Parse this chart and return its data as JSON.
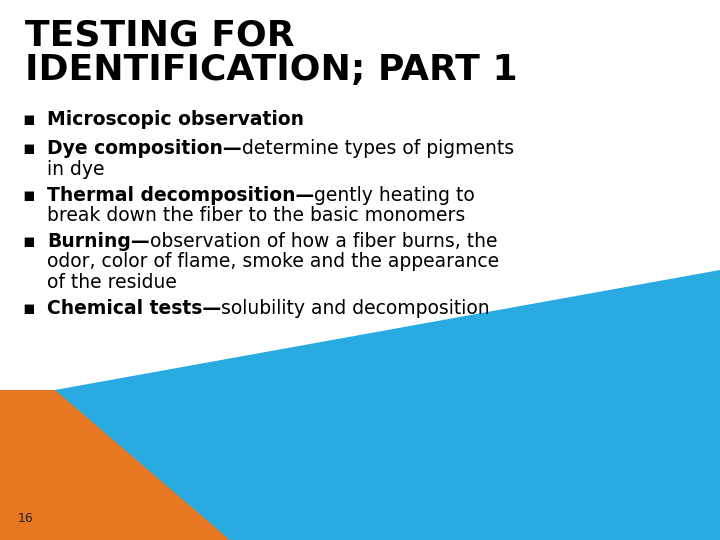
{
  "title_line1": "TESTING FOR",
  "title_line2": "IDENTIFICATION; PART 1",
  "bullets": [
    {
      "bold_part": "Microscopic observation",
      "normal_part": "",
      "has_dash": false
    },
    {
      "bold_part": "Dye composition",
      "normal_part": "determine types of pigments\nin dye",
      "has_dash": true
    },
    {
      "bold_part": "Thermal decomposition",
      "normal_part": "gently heating to\nbreak down the fiber to the basic monomers",
      "has_dash": true
    },
    {
      "bold_part": "Burning",
      "normal_part": "observation of how a fiber burns, the\nodor, color of flame, smoke and the appearance\nof the residue",
      "has_dash": true
    },
    {
      "bold_part": "Chemical tests",
      "normal_part": "solubility and decomposition",
      "has_dash": true
    }
  ],
  "background_color": "#ffffff",
  "title_color": "#000000",
  "text_color": "#000000",
  "highlight_color_orange": "#E87722",
  "highlight_color_blue": "#29ABE2",
  "page_number": "16",
  "bullet_char": "▪",
  "title_fontsize": 26,
  "bullet_fontsize": 13.5,
  "page_num_fontsize": 9
}
